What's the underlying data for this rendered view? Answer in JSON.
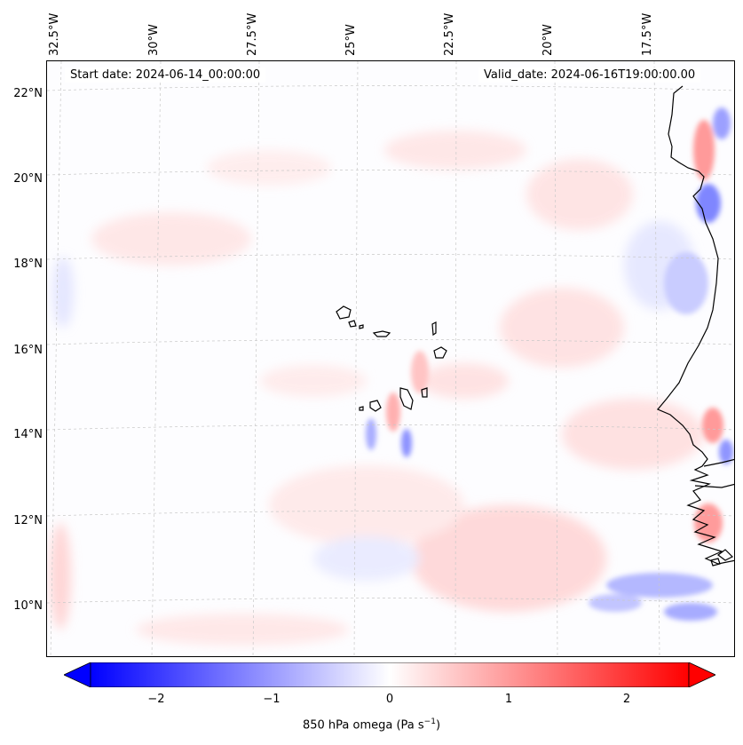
{
  "map": {
    "start_date_text": "Start date: 2024-06-14_00:00:00",
    "valid_date_text": "Valid_date: 2024-06-16T19:00:00.00",
    "lon_labels": [
      "32.5°W",
      "30°W",
      "27.5°W",
      "25°W",
      "22.5°W",
      "20°W",
      "17.5°W"
    ],
    "lat_labels": [
      "22°N",
      "20°N",
      "18°N",
      "16°N",
      "14°N",
      "12°N",
      "10°N"
    ],
    "variable": "850 hPa omega",
    "colormap": "bwr",
    "positive_color": "#ff0000",
    "negative_color": "#0000ff"
  },
  "colorbar": {
    "ticks": [
      "−2",
      "−1",
      "0",
      "1",
      "2"
    ],
    "label_prefix": "850 hPa omega (Pa s",
    "label_exp": "−1",
    "label_suffix": ")",
    "range": [
      -2.6,
      2.6
    ],
    "extend": "both"
  }
}
